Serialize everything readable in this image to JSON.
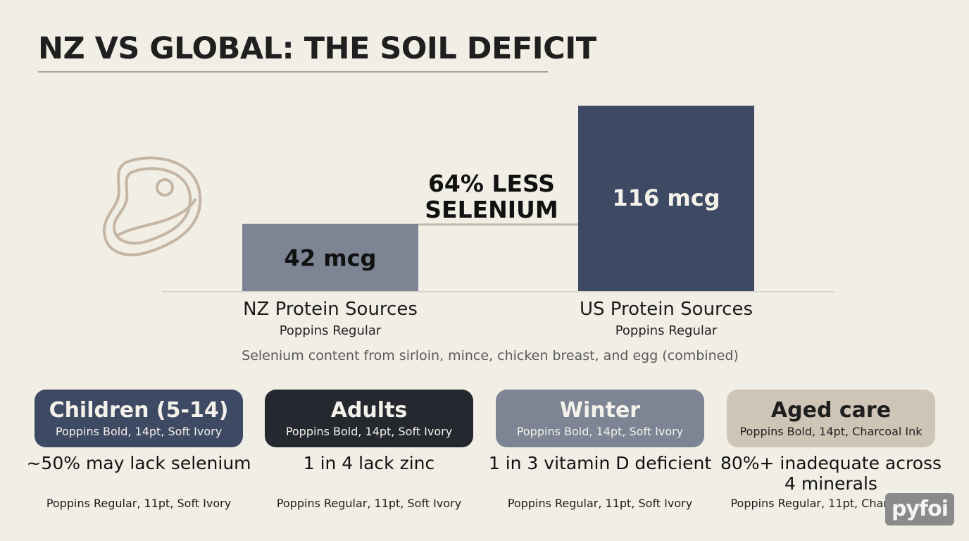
{
  "title": "NZ VS GLOBAL: THE SOIL DEFICIT",
  "chart_data": {
    "type": "bar",
    "categories": [
      "NZ Protein Sources",
      "US Protein Sources"
    ],
    "values": [
      42,
      116
    ],
    "value_labels": [
      "42 mcg",
      "116 mcg"
    ],
    "category_sublabels": [
      "Poppins Regular",
      "Poppins Regular"
    ],
    "unit": "mcg",
    "bar_colors": [
      "#7d8594",
      "#3e4a63"
    ],
    "annotation": "64% LESS SELENIUM",
    "note": "Selenium content from sirloin, mince, chicken breast, and egg (combined)",
    "ylim": [
      0,
      116
    ],
    "grid": false,
    "legend": "none"
  },
  "icons": [
    "steak-icon"
  ],
  "cards": [
    {
      "title": "Children (5-14)",
      "subtitle": "Poppins Bold, 14pt, Soft Ivory",
      "stat": "~50% may lack selenium",
      "stat_sub": "Poppins Regular, 11pt, Soft Ivory",
      "bg": "#3e4a63",
      "fg": "#f4f1ea"
    },
    {
      "title": "Adults",
      "subtitle": "Poppins Bold, 14pt, Soft Ivory",
      "stat": "1 in 4 lack zinc",
      "stat_sub": "Poppins Regular, 11pt, Soft Ivory",
      "bg": "#25292f",
      "fg": "#f4f1ea"
    },
    {
      "title": "Winter",
      "subtitle": "Poppins Bold, 14pt, Soft Ivory",
      "stat": "1 in 3 vitamin D deficient",
      "stat_sub": "Poppins Regular, 11pt, Soft Ivory",
      "bg": "#7d8594",
      "fg": "#f4f1ea"
    },
    {
      "title": "Aged care",
      "subtitle": "Poppins Bold, 14pt, Charcoal Ink",
      "stat": "80%+ inadequate across 4 minerals",
      "stat_sub": "Poppins Regular, 11pt, Charcoal Ink",
      "bg": "#cfc5b7",
      "fg": "#1e1e1e"
    }
  ],
  "watermark": "pyfoi"
}
